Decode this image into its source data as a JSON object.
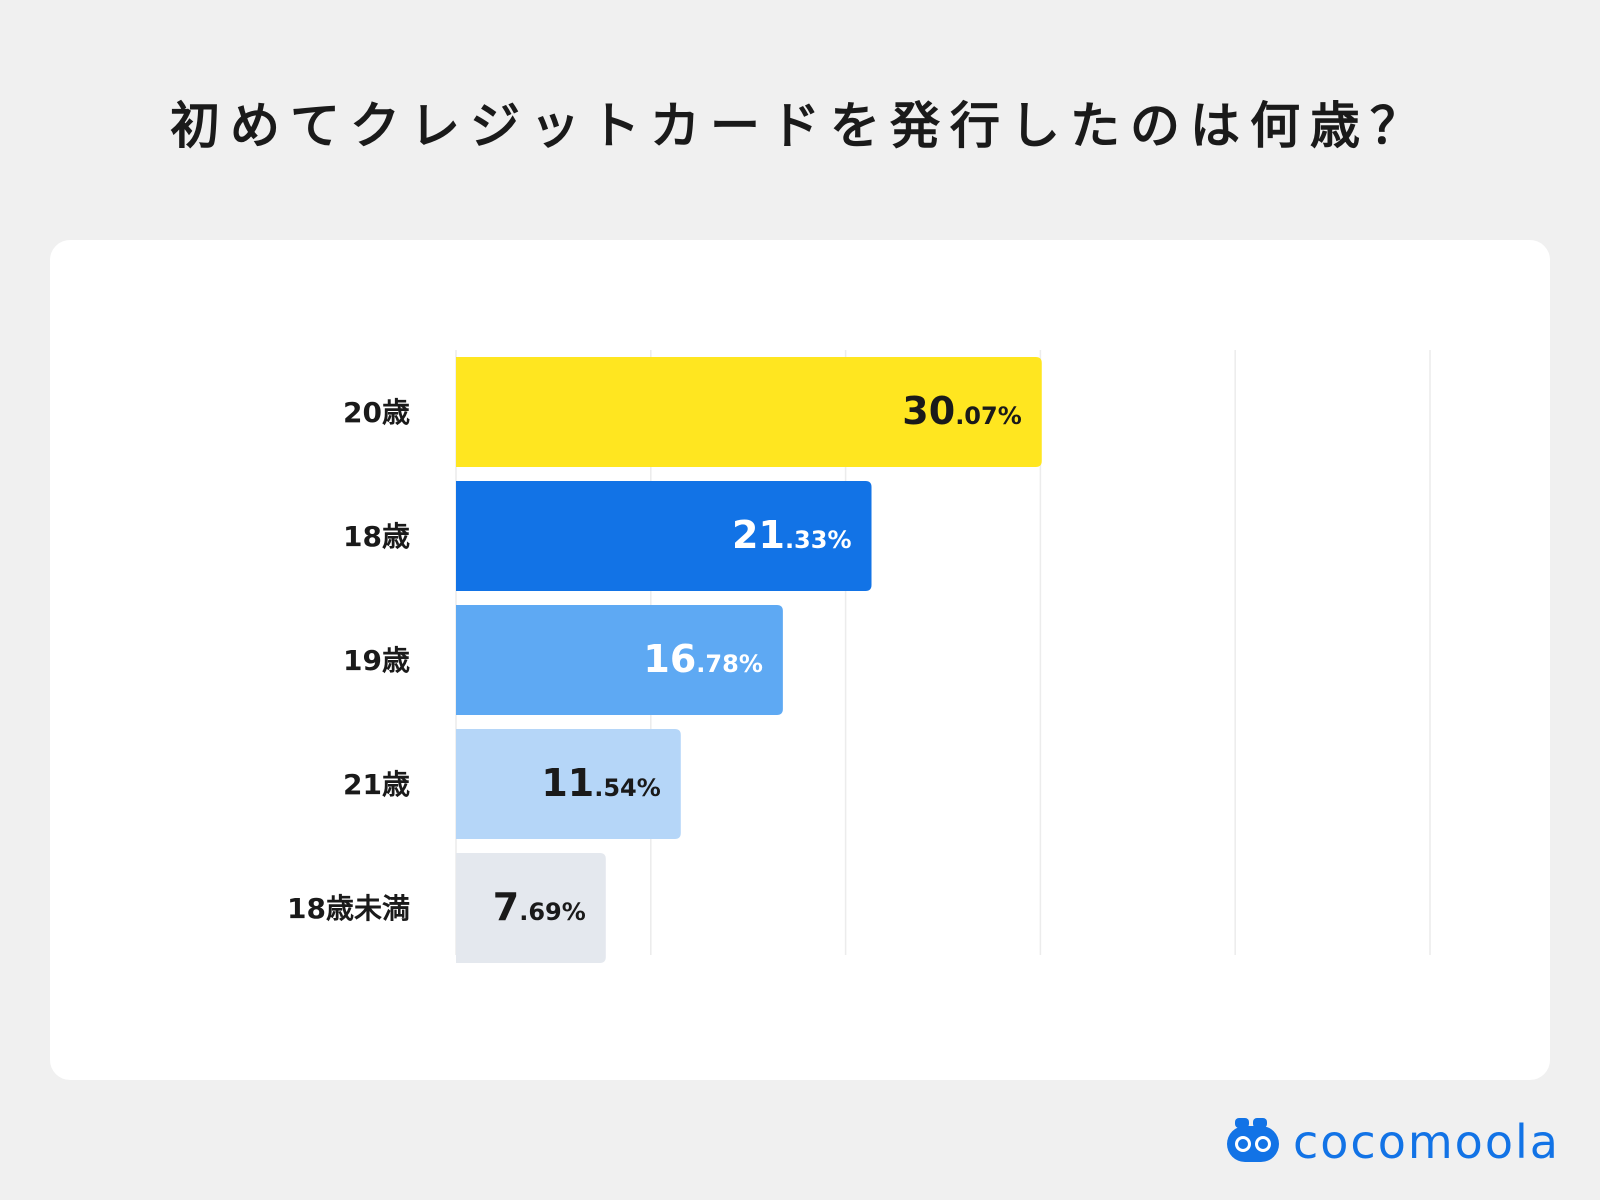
{
  "title": "初めてクレジットカードを発行したのは何歳？",
  "chart_data": {
    "type": "bar",
    "orientation": "horizontal",
    "categories": [
      "20歳",
      "18歳",
      "19歳",
      "21歳",
      "18歳未満"
    ],
    "values": [
      30.07,
      21.33,
      16.78,
      11.54,
      7.69
    ],
    "unit": "%",
    "data_labels": [
      {
        "int": "30",
        "dec": ".07%"
      },
      {
        "int": "21",
        "dec": ".33%"
      },
      {
        "int": "16",
        "dec": ".78%"
      },
      {
        "int": "11",
        "dec": ".54%"
      },
      {
        "int": "7",
        "dec": ".69%"
      }
    ],
    "colors": [
      "#ffe620",
      "#1273e6",
      "#5ea9f3",
      "#b5d6f8",
      "#e4e8ee"
    ],
    "label_colors": [
      "#1a1a1a",
      "#ffffff",
      "#ffffff",
      "#1a1a1a",
      "#1a1a1a"
    ],
    "xlim": [
      0,
      50
    ],
    "grid": true,
    "gridline_values": [
      0,
      10,
      20,
      30,
      40,
      50
    ]
  },
  "logo": {
    "text": "cocomoola",
    "icon": "cocomoola-logo-icon",
    "color": "#1273e6"
  }
}
